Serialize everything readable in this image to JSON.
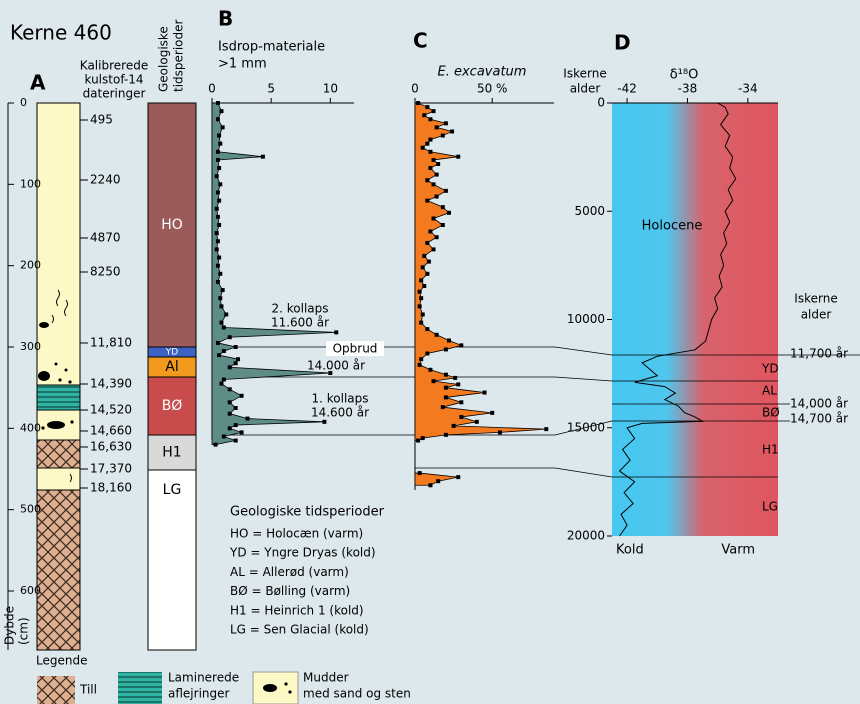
{
  "title": "Kerne 460",
  "core": {
    "label": "A",
    "header": [
      "Kalibrerede",
      "kulstof-14",
      "dateringer"
    ],
    "depth_label": [
      "Dybde",
      "(cm)"
    ],
    "depth_ticks": [
      0,
      100,
      200,
      300,
      400,
      500,
      600
    ],
    "dates": [
      "495",
      "2240",
      "4870",
      "8250",
      "11,810",
      "14,390",
      "14,520",
      "14,660",
      "16,630",
      "17,370",
      "18,160"
    ]
  },
  "periods": {
    "header": [
      "Geologiske",
      "tidsperioder"
    ],
    "units": [
      "HO",
      "YD",
      "Al",
      "BØ",
      "H1",
      "LG"
    ],
    "colors": [
      "#9b5b5b",
      "#3d62c4",
      "#f29a1e",
      "#c94c4c",
      "#d9d9d9",
      "#ffffff"
    ]
  },
  "period_legend": {
    "title": "Geologiske tidsperioder",
    "items": [
      "HO = Holocæn (varm)",
      "YD = Yngre Dryas (kold)",
      "AL = Allerød (varm)",
      "BØ = Bølling (varm)",
      "H1 = Heinrich 1 (kold)",
      "LG = Sen Glacial (kold)"
    ]
  },
  "legend": {
    "title": "Legende",
    "till": "Till",
    "laminated": [
      "Laminerede",
      "aflejringer"
    ],
    "mud": [
      "Mudder",
      "med sand og sten"
    ]
  },
  "chart_data": [
    {
      "type": "area",
      "label": "B",
      "title": "Isdrop-materiale",
      "subtitle": ">1 mm",
      "color": "#5e8d88",
      "markers": true,
      "xlim": [
        0,
        12
      ],
      "xticks": [
        0,
        5,
        10
      ],
      "ylim": [
        0,
        600
      ],
      "y": [
        0,
        10,
        20,
        30,
        40,
        50,
        60,
        66,
        70,
        80,
        90,
        100,
        110,
        120,
        130,
        140,
        150,
        160,
        170,
        180,
        190,
        200,
        210,
        220,
        230,
        240,
        250,
        260,
        270,
        276,
        282,
        288,
        295,
        300,
        305,
        310,
        315,
        320,
        325,
        332,
        340,
        345,
        352,
        360,
        368,
        375,
        382,
        388,
        392,
        396,
        400,
        405,
        410,
        415,
        420
      ],
      "values": [
        0.5,
        0.8,
        0.5,
        0.9,
        0.6,
        0.7,
        0.5,
        4.3,
        0.5,
        0.6,
        0.4,
        0.7,
        0.5,
        0.6,
        0.4,
        0.5,
        0.6,
        0.4,
        0.5,
        0.4,
        0.6,
        0.5,
        0.7,
        0.5,
        0.9,
        0.7,
        0.8,
        1.2,
        0.8,
        1.0,
        10.5,
        1.5,
        0.5,
        2.0,
        1.0,
        0.6,
        2.2,
        2.0,
        1.5,
        10.0,
        1.0,
        0.8,
        1.5,
        2.5,
        1.5,
        2.0,
        1.5,
        3.0,
        9.5,
        2.0,
        1.5,
        2.5,
        1.0,
        2.0,
        0.3
      ],
      "annotations": [
        "2. kollaps",
        "11.600 år",
        "Opbrud",
        "14.000 år",
        "1. kollaps",
        "14.600 år"
      ]
    },
    {
      "type": "area",
      "label": "C",
      "title": "E. excavatum",
      "color": "#f47a20",
      "markers": true,
      "xlim": [
        0,
        90
      ],
      "xticks": [
        0,
        {
          "value": 50,
          "label": "50 %"
        }
      ],
      "ylim": [
        0,
        600
      ],
      "y": [
        0,
        5,
        10,
        15,
        20,
        25,
        30,
        35,
        40,
        45,
        50,
        55,
        60,
        66,
        70,
        75,
        80,
        88,
        95,
        100,
        108,
        115,
        120,
        128,
        135,
        142,
        150,
        158,
        165,
        172,
        180,
        188,
        195,
        202,
        210,
        218,
        225,
        232,
        240,
        250,
        260,
        270,
        278,
        285,
        292,
        298,
        303,
        308,
        315,
        322,
        328,
        334,
        338,
        342,
        346,
        350,
        356,
        362,
        368,
        374,
        381,
        386,
        392,
        397,
        401,
        405,
        408,
        412,
        415,
        null,
        455,
        460,
        465,
        470
      ],
      "values": [
        2,
        8,
        12,
        6,
        10,
        20,
        14,
        24,
        18,
        10,
        8,
        5,
        10,
        28,
        12,
        15,
        10,
        14,
        8,
        12,
        20,
        14,
        8,
        18,
        22,
        12,
        18,
        10,
        14,
        8,
        12,
        6,
        9,
        5,
        8,
        4,
        6,
        3,
        4,
        3,
        5,
        4,
        8,
        14,
        22,
        30,
        20,
        8,
        4,
        3,
        10,
        20,
        26,
        12,
        28,
        20,
        45,
        20,
        30,
        18,
        50,
        30,
        40,
        25,
        85,
        55,
        20,
        5,
        2,
        null,
        3,
        28,
        15,
        10
      ]
    },
    {
      "type": "line",
      "label": "D",
      "xlabel": "δ¹⁸O",
      "ylabel": [
        "Iskerne",
        "alder"
      ],
      "color": "#000000",
      "xlim": [
        -43,
        -32
      ],
      "xticks": [
        -42,
        -38,
        -34
      ],
      "ylim": [
        0,
        20000
      ],
      "yticks": [
        0,
        5000,
        10000,
        15000,
        20000
      ],
      "y": [
        0,
        200,
        500,
        1000,
        1500,
        2000,
        2500,
        3000,
        3500,
        4000,
        4500,
        5000,
        5500,
        6000,
        6500,
        7000,
        7500,
        8000,
        8500,
        9000,
        9500,
        10000,
        10500,
        11000,
        11400,
        11700,
        12000,
        12300,
        12600,
        12900,
        13100,
        13400,
        13700,
        14000,
        14300,
        14500,
        14700,
        14800,
        15000,
        15500,
        16000,
        16500,
        17000,
        17500,
        18000,
        18500,
        19000,
        19500,
        20000
      ],
      "values": [
        -36,
        -35.5,
        -35.3,
        -35.8,
        -35.2,
        -35.5,
        -35,
        -35.2,
        -34.8,
        -35.3,
        -35,
        -35.5,
        -35.2,
        -35.6,
        -35.4,
        -35.8,
        -35.6,
        -35.9,
        -35.7,
        -36.2,
        -36,
        -36.4,
        -36.6,
        -36.8,
        -37.5,
        -40,
        -41,
        -40.5,
        -40,
        -41.5,
        -39.5,
        -38.8,
        -39.5,
        -38.6,
        -38.2,
        -37.5,
        -37,
        -41,
        -42,
        -41.5,
        -42.3,
        -41.8,
        -42.5,
        -41.5,
        -42.2,
        -41.6,
        -42.4,
        -42,
        -42.5
      ],
      "annotations": [
        "Holocene",
        "Kold",
        "Varm"
      ],
      "right_label": [
        "Iskerne",
        "alder"
      ],
      "events": [
        "11,700 år",
        "YD",
        "AL",
        "14,000 år",
        "BØ",
        "14,700 år",
        "H1",
        "LG"
      ]
    }
  ]
}
